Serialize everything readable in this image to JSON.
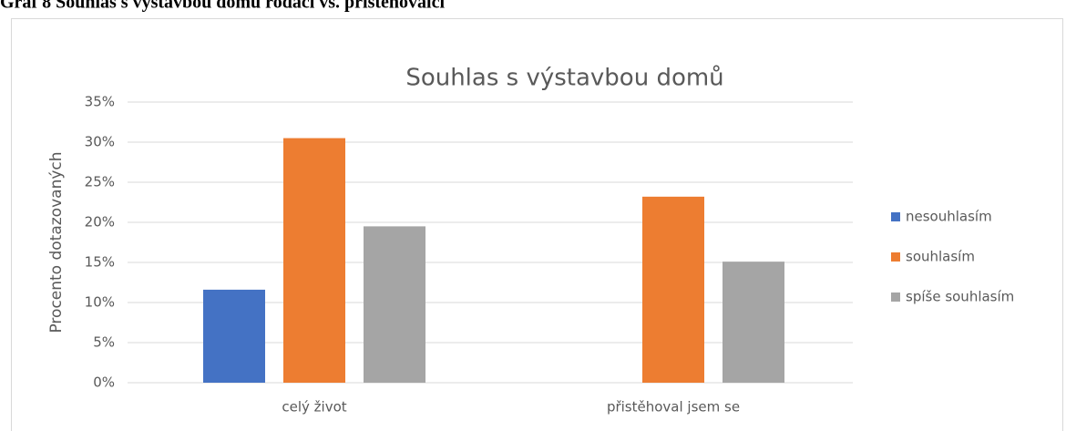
{
  "caption": "Graf 8 Souhlas s výstavbou domů rodáci vs. přistěhovalci",
  "chart_data": {
    "type": "bar",
    "title": "Souhlas s výstavbou domů",
    "y_label": "Procento dotazovaných",
    "categories": [
      "celý život",
      "přistěhoval jsem se"
    ],
    "series": [
      {
        "name": "nesouhlasím",
        "color": "#4472c4",
        "values": [
          11.6,
          0
        ]
      },
      {
        "name": "souhlasím",
        "color": "#ed7d31",
        "values": [
          30.5,
          23.2
        ]
      },
      {
        "name": "spíše souhlasím",
        "color": "#a5a5a5",
        "values": [
          19.5,
          15.1
        ]
      }
    ],
    "ylim": [
      0,
      35
    ],
    "yticks": [
      {
        "value": 0,
        "label": "0%"
      },
      {
        "value": 5,
        "label": "5%"
      },
      {
        "value": 10,
        "label": "10%"
      },
      {
        "value": 15,
        "label": "15%"
      },
      {
        "value": 20,
        "label": "20%"
      },
      {
        "value": 25,
        "label": "25%"
      },
      {
        "value": 30,
        "label": "30%"
      },
      {
        "value": 35,
        "label": "35%"
      }
    ],
    "grid": true,
    "legend": "right"
  }
}
